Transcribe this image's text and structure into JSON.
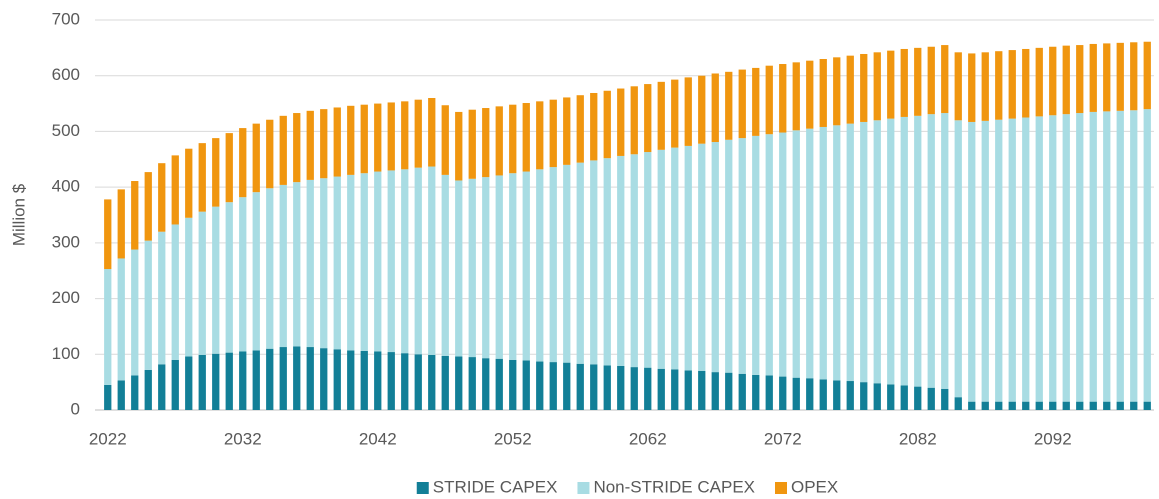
{
  "chart_data": {
    "type": "stacked_bar",
    "y_axis_label": "Million $",
    "categories": [
      "2022",
      null,
      null,
      null,
      null,
      null,
      null,
      null,
      null,
      null,
      "2032",
      null,
      null,
      null,
      null,
      null,
      null,
      null,
      null,
      null,
      "2042",
      null,
      null,
      null,
      null,
      null,
      null,
      null,
      null,
      null,
      "2052",
      null,
      null,
      null,
      null,
      null,
      null,
      null,
      null,
      null,
      "2062",
      null,
      null,
      null,
      null,
      null,
      null,
      null,
      null,
      null,
      "2072",
      null,
      null,
      null,
      null,
      null,
      null,
      null,
      null,
      null,
      "2082",
      null,
      null,
      null,
      null,
      null,
      null,
      null,
      null,
      null,
      "2092",
      null,
      null,
      null,
      null,
      null,
      null,
      null
    ],
    "series": [
      {
        "name": "STRIDE CAPEX",
        "color": "#127f97",
        "values": [
          45,
          53,
          62,
          72,
          82,
          90,
          96,
          99,
          101,
          103,
          105,
          107,
          110,
          113,
          114,
          113,
          111,
          109,
          107,
          106,
          105,
          104,
          102,
          100,
          99,
          97,
          96,
          95,
          93,
          92,
          90,
          89,
          87,
          86,
          85,
          83,
          82,
          80,
          79,
          77,
          76,
          74,
          73,
          71,
          70,
          68,
          67,
          65,
          63,
          62,
          60,
          58,
          57,
          55,
          53,
          52,
          50,
          48,
          46,
          44,
          42,
          40,
          38,
          23,
          15,
          15,
          15,
          15,
          15,
          15,
          15,
          15,
          15,
          15,
          15,
          15,
          15,
          15
        ]
      },
      {
        "name": "Non-STRIDE CAPEX",
        "color": "#a8dce3",
        "values": [
          208,
          219,
          226,
          232,
          238,
          243,
          249,
          257,
          264,
          270,
          277,
          284,
          288,
          291,
          295,
          300,
          305,
          310,
          315,
          319,
          323,
          326,
          330,
          335,
          338,
          325,
          316,
          320,
          325,
          329,
          335,
          339,
          345,
          350,
          355,
          361,
          366,
          372,
          377,
          382,
          387,
          393,
          398,
          403,
          408,
          413,
          418,
          423,
          429,
          433,
          438,
          444,
          448,
          453,
          458,
          462,
          467,
          472,
          477,
          482,
          486,
          491,
          495,
          497,
          502,
          504,
          506,
          508,
          510,
          512,
          514,
          516,
          518,
          520,
          521,
          522,
          523,
          525
        ]
      },
      {
        "name": "OPEX",
        "color": "#f0960f",
        "values": [
          125,
          124,
          123,
          123,
          123,
          124,
          124,
          123,
          123,
          124,
          124,
          123,
          123,
          124,
          124,
          124,
          124,
          124,
          124,
          123,
          122,
          122,
          122,
          122,
          123,
          125,
          123,
          124,
          124,
          124,
          123,
          123,
          122,
          121,
          121,
          121,
          121,
          121,
          121,
          122,
          122,
          122,
          122,
          123,
          122,
          123,
          122,
          123,
          122,
          123,
          123,
          122,
          122,
          122,
          122,
          122,
          122,
          122,
          122,
          122,
          122,
          121,
          122,
          122,
          123,
          123,
          123,
          123,
          123,
          123,
          123,
          123,
          122,
          122,
          122,
          122,
          122,
          121
        ]
      }
    ],
    "ylim": [
      0,
      700
    ],
    "yticks": [
      0,
      100,
      200,
      300,
      400,
      500,
      600,
      700
    ],
    "grid": true,
    "legend": "bottom"
  }
}
